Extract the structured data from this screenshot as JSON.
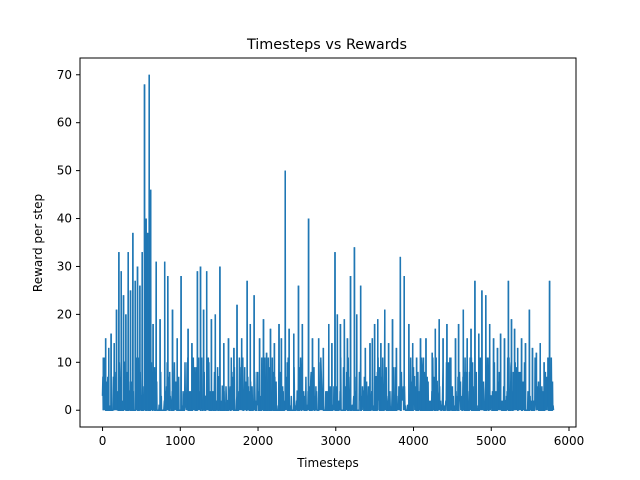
{
  "chart_data": {
    "type": "line",
    "title": "Timesteps vs Rewards",
    "xlabel": "Timesteps",
    "ylabel": "Reward per step",
    "xlim": [
      -290,
      6090
    ],
    "ylim": [
      -3.5,
      73.5
    ],
    "xticks": [
      0,
      1000,
      2000,
      3000,
      4000,
      5000,
      6000
    ],
    "yticks": [
      0,
      10,
      20,
      30,
      40,
      50,
      60,
      70
    ],
    "grid": false,
    "legend": "none",
    "series": [
      {
        "color": "#1f77b4",
        "x_range": [
          0,
          5800
        ],
        "baseline_noise_max": 11,
        "peaks": [
          [
            10,
            11
          ],
          [
            40,
            15
          ],
          [
            80,
            13
          ],
          [
            110,
            16
          ],
          [
            150,
            14
          ],
          [
            180,
            21
          ],
          [
            210,
            33
          ],
          [
            240,
            29
          ],
          [
            270,
            24
          ],
          [
            300,
            20
          ],
          [
            330,
            33
          ],
          [
            360,
            25
          ],
          [
            390,
            37
          ],
          [
            420,
            27
          ],
          [
            450,
            30
          ],
          [
            480,
            26
          ],
          [
            510,
            33
          ],
          [
            540,
            68
          ],
          [
            560,
            40
          ],
          [
            580,
            37
          ],
          [
            600,
            70
          ],
          [
            620,
            46
          ],
          [
            650,
            18
          ],
          [
            690,
            31
          ],
          [
            740,
            19
          ],
          [
            800,
            31
          ],
          [
            840,
            28
          ],
          [
            900,
            21
          ],
          [
            960,
            15
          ],
          [
            1010,
            28
          ],
          [
            1100,
            17
          ],
          [
            1150,
            14
          ],
          [
            1220,
            29
          ],
          [
            1260,
            30
          ],
          [
            1300,
            21
          ],
          [
            1340,
            29
          ],
          [
            1400,
            19
          ],
          [
            1450,
            20
          ],
          [
            1510,
            30
          ],
          [
            1560,
            14
          ],
          [
            1620,
            15
          ],
          [
            1690,
            13
          ],
          [
            1730,
            22
          ],
          [
            1790,
            15
          ],
          [
            1860,
            27
          ],
          [
            1900,
            18
          ],
          [
            1950,
            24
          ],
          [
            2020,
            15
          ],
          [
            2070,
            19
          ],
          [
            2110,
            12
          ],
          [
            2160,
            17
          ],
          [
            2210,
            14
          ],
          [
            2270,
            18
          ],
          [
            2300,
            15
          ],
          [
            2350,
            50
          ],
          [
            2400,
            17
          ],
          [
            2460,
            16
          ],
          [
            2520,
            26
          ],
          [
            2570,
            18
          ],
          [
            2650,
            40
          ],
          [
            2700,
            15
          ],
          [
            2780,
            15
          ],
          [
            2840,
            13
          ],
          [
            2910,
            18
          ],
          [
            2950,
            14
          ],
          [
            2990,
            33
          ],
          [
            3020,
            20
          ],
          [
            3060,
            18
          ],
          [
            3110,
            19
          ],
          [
            3150,
            15
          ],
          [
            3190,
            28
          ],
          [
            3240,
            34
          ],
          [
            3270,
            20
          ],
          [
            3320,
            26
          ],
          [
            3380,
            13
          ],
          [
            3440,
            14
          ],
          [
            3470,
            15
          ],
          [
            3500,
            18
          ],
          [
            3540,
            19
          ],
          [
            3580,
            14
          ],
          [
            3630,
            21
          ],
          [
            3680,
            14
          ],
          [
            3730,
            19
          ],
          [
            3780,
            13
          ],
          [
            3830,
            32
          ],
          [
            3880,
            28
          ],
          [
            3940,
            18
          ],
          [
            3990,
            14
          ],
          [
            4040,
            11
          ],
          [
            4090,
            15
          ],
          [
            4160,
            15
          ],
          [
            4240,
            12
          ],
          [
            4280,
            17
          ],
          [
            4330,
            19
          ],
          [
            4380,
            15
          ],
          [
            4430,
            18
          ],
          [
            4480,
            11
          ],
          [
            4540,
            15
          ],
          [
            4580,
            18
          ],
          [
            4640,
            21
          ],
          [
            4690,
            15
          ],
          [
            4740,
            17
          ],
          [
            4790,
            27
          ],
          [
            4840,
            16
          ],
          [
            4880,
            25
          ],
          [
            4930,
            24
          ],
          [
            4980,
            18
          ],
          [
            5030,
            15
          ],
          [
            5080,
            13
          ],
          [
            5120,
            16
          ],
          [
            5170,
            15
          ],
          [
            5220,
            27
          ],
          [
            5260,
            19
          ],
          [
            5300,
            17
          ],
          [
            5340,
            13
          ],
          [
            5390,
            15
          ],
          [
            5440,
            14
          ],
          [
            5490,
            21
          ],
          [
            5530,
            13
          ],
          [
            5580,
            12
          ],
          [
            5630,
            14
          ],
          [
            5680,
            10
          ],
          [
            5730,
            11
          ],
          [
            5750,
            27
          ],
          [
            5780,
            5
          ]
        ]
      }
    ]
  }
}
